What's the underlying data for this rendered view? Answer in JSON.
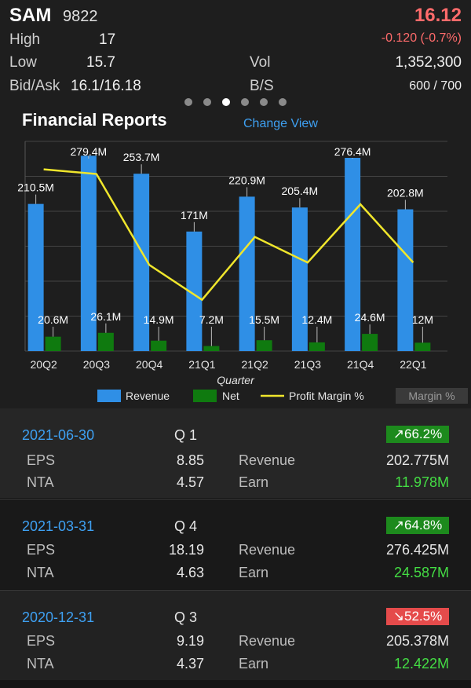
{
  "stock": {
    "symbol": "SAM",
    "code": "9822",
    "price": "16.12",
    "change": "-0.120 (-0.7%)",
    "high_label": "High",
    "high": "17",
    "low_label": "Low",
    "low": "15.7",
    "vol_label": "Vol",
    "vol": "1,352,300",
    "bidask_label": "Bid/Ask",
    "bidask": "16.1/16.18",
    "bs_label": "B/S",
    "bs": "600 / 700"
  },
  "pager": {
    "count": 6,
    "active_index": 2
  },
  "section": {
    "title": "Financial Reports",
    "change_view": "Change View"
  },
  "colors": {
    "revenue": "#2f8fe6",
    "net": "#0f7a0f",
    "margin": "#f0e62c",
    "price": "#ff6b6b",
    "link": "#3ea0f2"
  },
  "chart_data": {
    "type": "bar",
    "categories": [
      "20Q2",
      "20Q3",
      "20Q4",
      "21Q1",
      "21Q2",
      "21Q3",
      "21Q4",
      "22Q1"
    ],
    "xlabel": "Quarter",
    "series": [
      {
        "name": "Revenue",
        "type": "bar",
        "values": [
          210.5,
          279.4,
          253.7,
          171,
          220.9,
          205.4,
          276.4,
          202.8
        ],
        "labels": [
          "210.5M",
          "279.4M",
          "253.7M",
          "171M",
          "220.9M",
          "205.4M",
          "276.4M",
          "202.8M"
        ]
      },
      {
        "name": "Net",
        "type": "bar",
        "values": [
          20.6,
          26.1,
          14.9,
          7.2,
          15.5,
          12.4,
          24.6,
          12
        ],
        "labels": [
          "20.6M",
          "26.1M",
          "14.9M",
          "7.2M",
          "15.5M",
          "12.4M",
          "24.6M",
          "12M"
        ]
      },
      {
        "name": "Profit Margin %",
        "type": "line",
        "values": [
          98,
          96,
          57,
          42,
          69,
          58,
          83,
          58
        ]
      }
    ],
    "revenue_ylim": [
      0,
      300
    ],
    "margin_ylim": [
      20,
      110
    ],
    "grid": true,
    "legend_position": "bottom",
    "legend_extra": "Margin %"
  },
  "reports": [
    {
      "date": "2021-06-30",
      "quarter": "Q  1",
      "margin": "↗66.2%",
      "trend": "up",
      "eps_label": "EPS",
      "eps": "8.85",
      "nta_label": "NTA",
      "nta": "4.57",
      "revenue_label": "Revenue",
      "revenue": "202.775M",
      "earn_label": "Earn",
      "earn": "11.978M"
    },
    {
      "date": "2021-03-31",
      "quarter": "Q  4",
      "margin": "↗64.8%",
      "trend": "up",
      "eps_label": "EPS",
      "eps": "18.19",
      "nta_label": "NTA",
      "nta": "4.63",
      "revenue_label": "Revenue",
      "revenue": "276.425M",
      "earn_label": "Earn",
      "earn": "24.587M"
    },
    {
      "date": "2020-12-31",
      "quarter": "Q  3",
      "margin": "↘52.5%",
      "trend": "down",
      "eps_label": "EPS",
      "eps": "9.19",
      "nta_label": "NTA",
      "nta": "4.37",
      "revenue_label": "Revenue",
      "revenue": "205.378M",
      "earn_label": "Earn",
      "earn": "12.422M"
    }
  ]
}
